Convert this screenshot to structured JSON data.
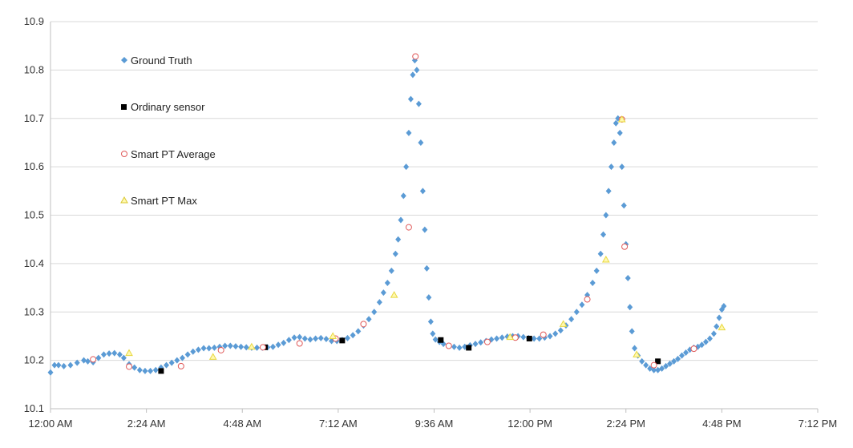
{
  "chart_data": {
    "type": "scatter",
    "x_axis": {
      "min_minutes": 0,
      "max_minutes": 1152,
      "ticks": [
        {
          "value": 0,
          "label": "12:00 AM"
        },
        {
          "value": 144,
          "label": "2:24 AM"
        },
        {
          "value": 288,
          "label": "4:48 AM"
        },
        {
          "value": 432,
          "label": "7:12 AM"
        },
        {
          "value": 576,
          "label": "9:36 AM"
        },
        {
          "value": 720,
          "label": "12:00 PM"
        },
        {
          "value": 864,
          "label": "2:24 PM"
        },
        {
          "value": 1008,
          "label": "4:48 PM"
        },
        {
          "value": 1152,
          "label": "7:12 PM"
        }
      ]
    },
    "y_axis": {
      "min": 10.1,
      "max": 10.9,
      "ticks": [
        {
          "value": 10.1,
          "label": "10.1"
        },
        {
          "value": 10.2,
          "label": "10.2"
        },
        {
          "value": 10.3,
          "label": "10.3"
        },
        {
          "value": 10.4,
          "label": "10.4"
        },
        {
          "value": 10.5,
          "label": "10.5"
        },
        {
          "value": 10.6,
          "label": "10.6"
        },
        {
          "value": 10.7,
          "label": "10.7"
        },
        {
          "value": 10.8,
          "label": "10.8"
        },
        {
          "value": 10.9,
          "label": "10.9"
        }
      ]
    },
    "grid": "horizontal",
    "legend_position": "top-left",
    "colors": {
      "ground_truth": "#5b9bd5",
      "ordinary": "#000000",
      "smart_avg": "#e05a5a",
      "smart_max": "#e8d840"
    },
    "series": [
      {
        "name": "Ground Truth",
        "marker": "diamond",
        "points": [
          [
            0,
            10.175
          ],
          [
            6,
            10.19
          ],
          [
            12,
            10.19
          ],
          [
            20,
            10.188
          ],
          [
            30,
            10.19
          ],
          [
            40,
            10.195
          ],
          [
            50,
            10.2
          ],
          [
            56,
            10.198
          ],
          [
            64,
            10.196
          ],
          [
            72,
            10.205
          ],
          [
            80,
            10.212
          ],
          [
            88,
            10.214
          ],
          [
            96,
            10.215
          ],
          [
            104,
            10.212
          ],
          [
            110,
            10.205
          ],
          [
            118,
            10.192
          ],
          [
            126,
            10.185
          ],
          [
            134,
            10.18
          ],
          [
            142,
            10.178
          ],
          [
            150,
            10.178
          ],
          [
            158,
            10.18
          ],
          [
            166,
            10.185
          ],
          [
            174,
            10.19
          ],
          [
            182,
            10.195
          ],
          [
            190,
            10.2
          ],
          [
            198,
            10.205
          ],
          [
            206,
            10.212
          ],
          [
            214,
            10.218
          ],
          [
            222,
            10.222
          ],
          [
            230,
            10.225
          ],
          [
            238,
            10.225
          ],
          [
            246,
            10.226
          ],
          [
            254,
            10.228
          ],
          [
            262,
            10.23
          ],
          [
            270,
            10.23
          ],
          [
            278,
            10.229
          ],
          [
            286,
            10.228
          ],
          [
            294,
            10.227
          ],
          [
            302,
            10.226
          ],
          [
            310,
            10.226
          ],
          [
            318,
            10.226
          ],
          [
            326,
            10.227
          ],
          [
            334,
            10.228
          ],
          [
            342,
            10.232
          ],
          [
            350,
            10.236
          ],
          [
            358,
            10.242
          ],
          [
            366,
            10.247
          ],
          [
            374,
            10.248
          ],
          [
            382,
            10.245
          ],
          [
            390,
            10.243
          ],
          [
            398,
            10.245
          ],
          [
            406,
            10.246
          ],
          [
            414,
            10.244
          ],
          [
            422,
            10.24
          ],
          [
            430,
            10.24
          ],
          [
            438,
            10.242
          ],
          [
            446,
            10.246
          ],
          [
            454,
            10.252
          ],
          [
            462,
            10.26
          ],
          [
            470,
            10.272
          ],
          [
            478,
            10.285
          ],
          [
            486,
            10.3
          ],
          [
            494,
            10.32
          ],
          [
            500,
            10.34
          ],
          [
            506,
            10.36
          ],
          [
            512,
            10.385
          ],
          [
            518,
            10.42
          ],
          [
            522,
            10.45
          ],
          [
            526,
            10.49
          ],
          [
            530,
            10.54
          ],
          [
            534,
            10.6
          ],
          [
            538,
            10.67
          ],
          [
            541,
            10.74
          ],
          [
            544,
            10.79
          ],
          [
            547,
            10.82
          ],
          [
            550,
            10.8
          ],
          [
            553,
            10.73
          ],
          [
            556,
            10.65
          ],
          [
            559,
            10.55
          ],
          [
            562,
            10.47
          ],
          [
            565,
            10.39
          ],
          [
            568,
            10.33
          ],
          [
            571,
            10.28
          ],
          [
            574,
            10.255
          ],
          [
            578,
            10.243
          ],
          [
            584,
            10.238
          ],
          [
            590,
            10.234
          ],
          [
            598,
            10.23
          ],
          [
            606,
            10.228
          ],
          [
            614,
            10.226
          ],
          [
            622,
            10.228
          ],
          [
            630,
            10.231
          ],
          [
            638,
            10.234
          ],
          [
            646,
            10.237
          ],
          [
            654,
            10.24
          ],
          [
            662,
            10.243
          ],
          [
            670,
            10.245
          ],
          [
            678,
            10.247
          ],
          [
            686,
            10.249
          ],
          [
            694,
            10.25
          ],
          [
            702,
            10.25
          ],
          [
            710,
            10.248
          ],
          [
            718,
            10.246
          ],
          [
            726,
            10.245
          ],
          [
            734,
            10.245
          ],
          [
            742,
            10.247
          ],
          [
            750,
            10.25
          ],
          [
            758,
            10.255
          ],
          [
            766,
            10.262
          ],
          [
            774,
            10.272
          ],
          [
            782,
            10.285
          ],
          [
            790,
            10.3
          ],
          [
            798,
            10.315
          ],
          [
            806,
            10.335
          ],
          [
            814,
            10.36
          ],
          [
            820,
            10.385
          ],
          [
            826,
            10.42
          ],
          [
            830,
            10.46
          ],
          [
            834,
            10.5
          ],
          [
            838,
            10.55
          ],
          [
            842,
            10.6
          ],
          [
            846,
            10.65
          ],
          [
            849,
            10.69
          ],
          [
            852,
            10.7
          ],
          [
            855,
            10.67
          ],
          [
            858,
            10.6
          ],
          [
            861,
            10.52
          ],
          [
            864,
            10.44
          ],
          [
            867,
            10.37
          ],
          [
            870,
            10.31
          ],
          [
            873,
            10.26
          ],
          [
            877,
            10.225
          ],
          [
            882,
            10.21
          ],
          [
            888,
            10.198
          ],
          [
            894,
            10.19
          ],
          [
            900,
            10.183
          ],
          [
            906,
            10.18
          ],
          [
            912,
            10.18
          ],
          [
            918,
            10.183
          ],
          [
            924,
            10.188
          ],
          [
            930,
            10.193
          ],
          [
            936,
            10.198
          ],
          [
            942,
            10.203
          ],
          [
            948,
            10.21
          ],
          [
            954,
            10.216
          ],
          [
            960,
            10.222
          ],
          [
            966,
            10.226
          ],
          [
            972,
            10.228
          ],
          [
            978,
            10.232
          ],
          [
            984,
            10.238
          ],
          [
            990,
            10.245
          ],
          [
            996,
            10.255
          ],
          [
            1000,
            10.27
          ],
          [
            1004,
            10.288
          ],
          [
            1008,
            10.305
          ],
          [
            1011,
            10.312
          ]
        ]
      },
      {
        "name": "Ordinary sensor",
        "marker": "square",
        "points": [
          [
            166,
            10.178
          ],
          [
            322,
            10.227
          ],
          [
            438,
            10.241
          ],
          [
            586,
            10.242
          ],
          [
            628,
            10.226
          ],
          [
            719,
            10.245
          ],
          [
            912,
            10.198
          ]
        ]
      },
      {
        "name": "Smart PT Average",
        "marker": "circle",
        "points": [
          [
            64,
            10.202
          ],
          [
            118,
            10.187
          ],
          [
            196,
            10.188
          ],
          [
            256,
            10.221
          ],
          [
            319,
            10.227
          ],
          [
            374,
            10.235
          ],
          [
            428,
            10.245
          ],
          [
            470,
            10.275
          ],
          [
            538,
            10.475
          ],
          [
            548,
            10.828
          ],
          [
            598,
            10.23
          ],
          [
            656,
            10.238
          ],
          [
            698,
            10.247
          ],
          [
            740,
            10.253
          ],
          [
            806,
            10.326
          ],
          [
            862,
            10.435
          ],
          [
            858,
            10.698
          ],
          [
            906,
            10.19
          ],
          [
            966,
            10.224
          ]
        ]
      },
      {
        "name": "Smart PT Max",
        "marker": "triangle",
        "points": [
          [
            118,
            10.215
          ],
          [
            244,
            10.207
          ],
          [
            302,
            10.228
          ],
          [
            424,
            10.25
          ],
          [
            516,
            10.335
          ],
          [
            690,
            10.248
          ],
          [
            770,
            10.275
          ],
          [
            834,
            10.408
          ],
          [
            858,
            10.698
          ],
          [
            880,
            10.212
          ],
          [
            1008,
            10.268
          ]
        ]
      }
    ]
  }
}
